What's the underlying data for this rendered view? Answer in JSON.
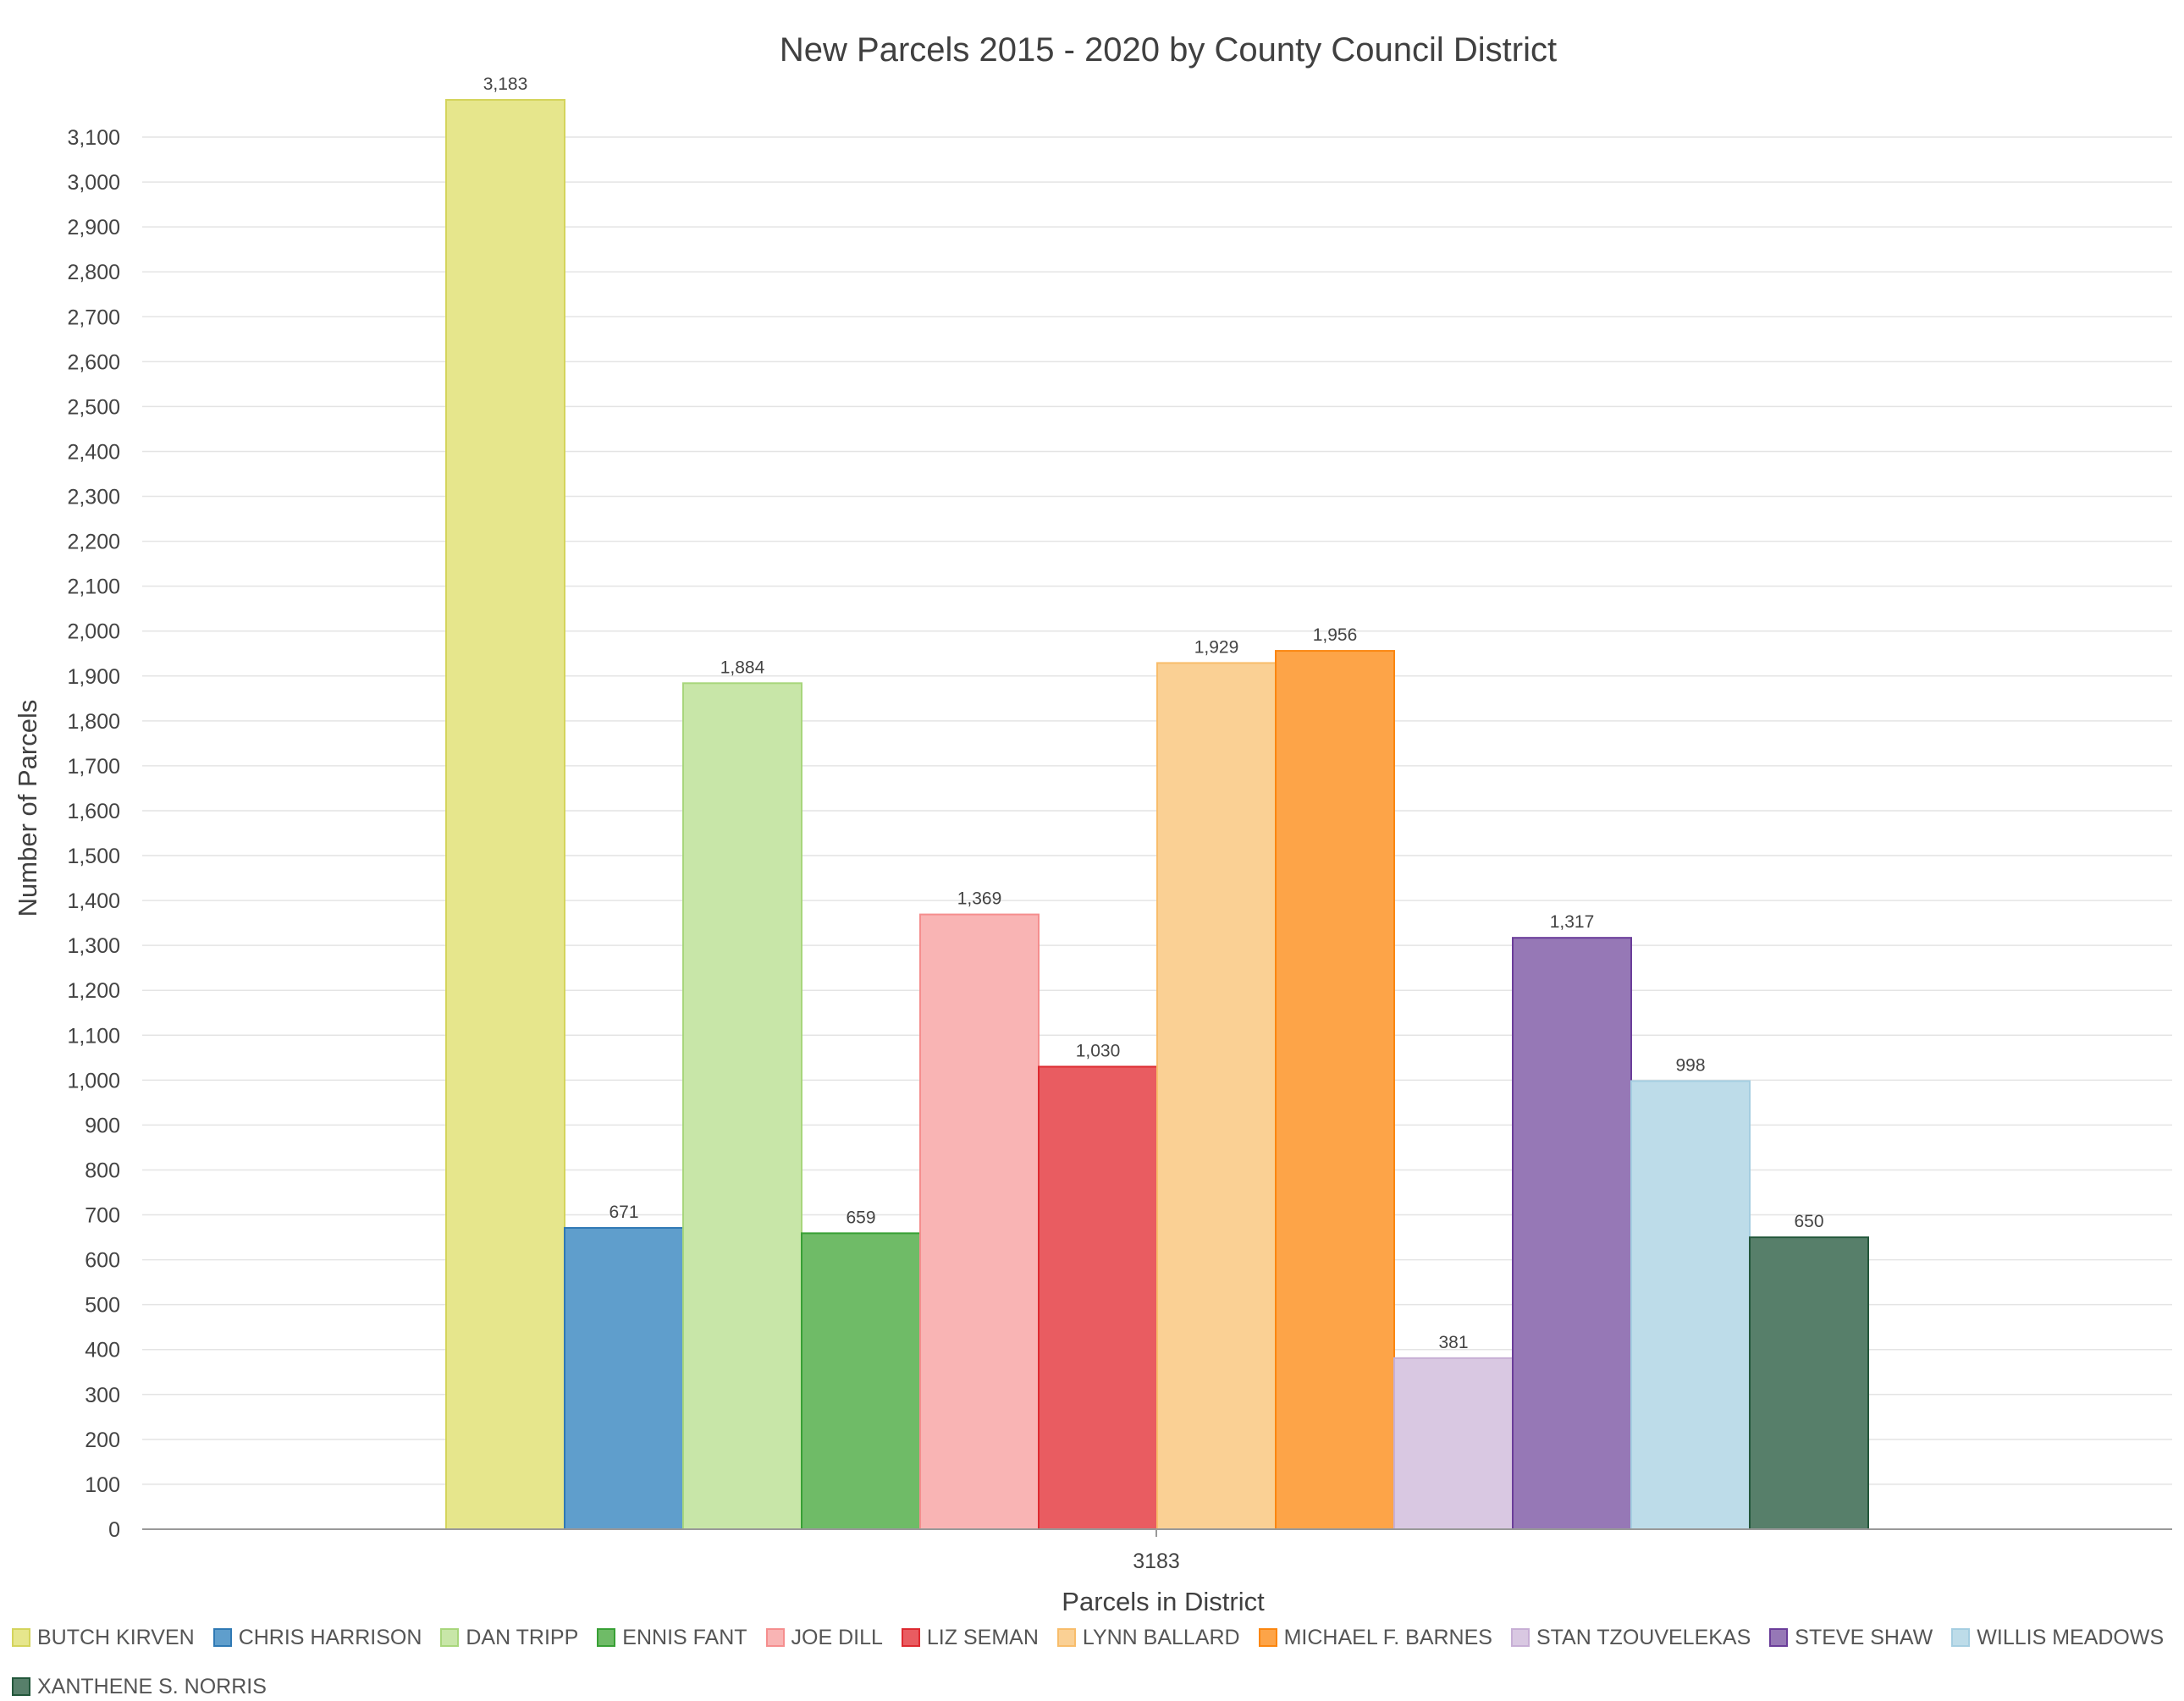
{
  "chart_data": {
    "type": "bar",
    "title": "New Parcels 2015 - 2020  by County Council District",
    "xlabel": "Parcels in District",
    "ylabel": "Number of Parcels",
    "categories": [
      "3183"
    ],
    "ylim": [
      0,
      3183
    ],
    "y_ticks": [
      "0",
      "100",
      "200",
      "300",
      "400",
      "500",
      "600",
      "700",
      "800",
      "900",
      "1,000",
      "1,100",
      "1,200",
      "1,300",
      "1,400",
      "1,500",
      "1,600",
      "1,700",
      "1,800",
      "1,900",
      "2,000",
      "2,100",
      "2,200",
      "2,300",
      "2,400",
      "2,500",
      "2,600",
      "2,700",
      "2,800",
      "2,900",
      "3,000",
      "3,100"
    ],
    "grid": true,
    "legend_position": "bottom",
    "series": [
      {
        "name": "BUTCH KIRVEN",
        "values": [
          3183
        ],
        "label": "3,183",
        "color": "#e6e68c",
        "border": "#d4d45c"
      },
      {
        "name": "CHRIS HARRISON",
        "values": [
          671
        ],
        "label": "671",
        "color": "#5f9ecc",
        "border": "#2f79b4"
      },
      {
        "name": "DAN TRIPP",
        "values": [
          1884
        ],
        "label": "1,884",
        "color": "#c8e6a8",
        "border": "#a8d67c"
      },
      {
        "name": "ENNIS FANT",
        "values": [
          659
        ],
        "label": "659",
        "color": "#6fbb67",
        "border": "#38a035"
      },
      {
        "name": "JOE DILL",
        "values": [
          1369
        ],
        "label": "1,369",
        "color": "#f9b4b4",
        "border": "#f58e8e"
      },
      {
        "name": "LIZ SEMAN",
        "values": [
          1030
        ],
        "label": "1,030",
        "color": "#e95c61",
        "border": "#dd2a30"
      },
      {
        "name": "LYNN BALLARD",
        "values": [
          1929
        ],
        "label": "1,929",
        "color": "#fad094",
        "border": "#f8bd6b"
      },
      {
        "name": "MICHAEL F. BARNES",
        "values": [
          1956
        ],
        "label": "1,956",
        "color": "#fda448",
        "border": "#fb8610"
      },
      {
        "name": "STAN TZOUVELEKAS",
        "values": [
          381
        ],
        "label": "381",
        "color": "#d9c8e2",
        "border": "#c7afd5"
      },
      {
        "name": "STEVE SHAW",
        "values": [
          1317
        ],
        "label": "1,317",
        "color": "#9678b6",
        "border": "#6b3e9a"
      },
      {
        "name": "WILLIS MEADOWS",
        "values": [
          998
        ],
        "label": "998",
        "color": "#bddce9",
        "border": "#a5cee1"
      },
      {
        "name": "XANTHENE S. NORRIS",
        "values": [
          650
        ],
        "label": "650",
        "color": "#577f6a",
        "border": "#23573b"
      }
    ]
  }
}
